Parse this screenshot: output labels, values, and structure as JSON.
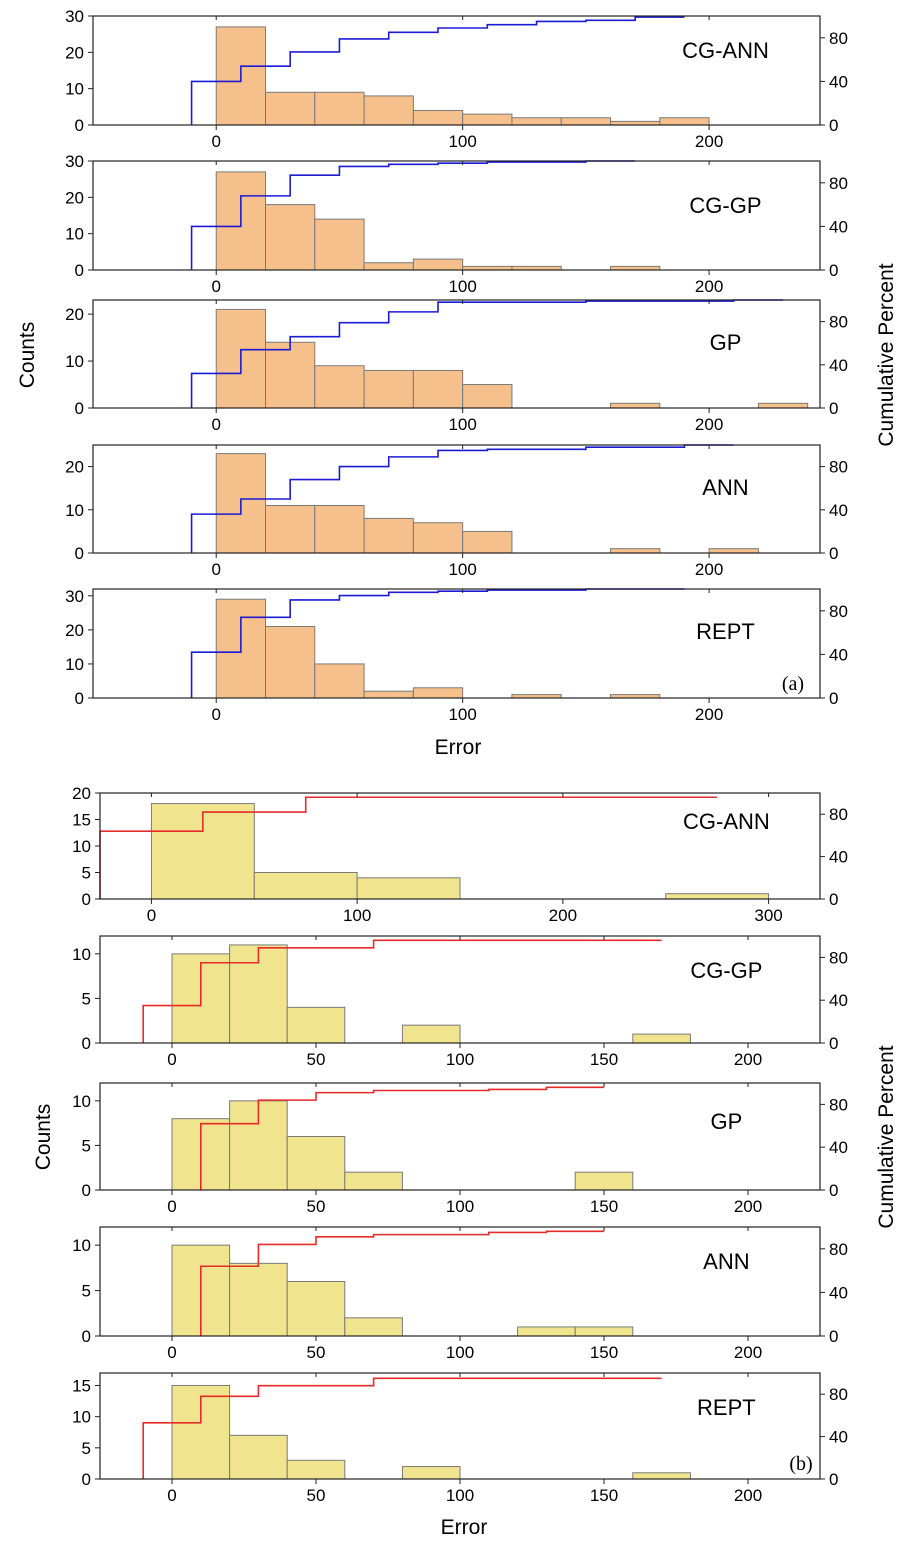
{
  "figure": {
    "panel_tags": [
      "(a)",
      "(b)"
    ],
    "y_label_left": "Counts",
    "y_label_right": "Cumulative Percent",
    "x_label": "Error"
  },
  "colors": {
    "a_bar_fill": "#f5c08b",
    "b_bar_fill": "#f0e48e",
    "a_line": "#1b1bd6",
    "b_line": "#e62b2b",
    "bar_edge": "#7a7a7a",
    "axis": "#222222"
  },
  "chart_data": [
    {
      "type": "bar",
      "panel": "(a)",
      "model": "CG-ANN",
      "bin_edges": [
        0,
        20,
        40,
        60,
        80,
        100,
        120,
        140,
        160,
        180,
        200
      ],
      "counts": [
        27,
        9,
        9,
        8,
        4,
        3,
        2,
        2,
        1,
        2
      ],
      "cumulative": {
        "x": [
          -10,
          10,
          30,
          50,
          70,
          90,
          110,
          130,
          150,
          170
        ],
        "y": [
          40,
          54,
          67,
          79,
          85,
          89,
          92,
          95,
          96,
          99
        ]
      },
      "xlim": [
        -50,
        245
      ],
      "ylim": [
        0,
        30
      ],
      "y2lim": [
        0,
        100
      ],
      "xticks": [
        "0",
        "100",
        "200"
      ],
      "yticks": [
        "0",
        "10",
        "20",
        "30"
      ],
      "y2ticks": [
        "0",
        "40",
        "80"
      ]
    },
    {
      "type": "bar",
      "panel": "(a)",
      "model": "CG-GP",
      "bin_edges": [
        0,
        20,
        40,
        60,
        80,
        100,
        120,
        140,
        160,
        180
      ],
      "counts": [
        27,
        18,
        14,
        2,
        3,
        1,
        1,
        0,
        1
      ],
      "cumulative": {
        "x": [
          -10,
          10,
          30,
          50,
          70,
          90,
          110,
          130,
          150
        ],
        "y": [
          40,
          68,
          87,
          95,
          97,
          98,
          99,
          99,
          100
        ]
      },
      "xlim": [
        -50,
        245
      ],
      "ylim": [
        0,
        30
      ],
      "y2lim": [
        0,
        100
      ],
      "xticks": [
        "0",
        "100",
        "200"
      ],
      "yticks": [
        "0",
        "10",
        "20",
        "30"
      ],
      "y2ticks": [
        "0",
        "40",
        "80"
      ]
    },
    {
      "type": "bar",
      "panel": "(a)",
      "model": "GP",
      "bin_edges": [
        0,
        20,
        40,
        60,
        80,
        100,
        120,
        140,
        160,
        180,
        200,
        220,
        240
      ],
      "counts": [
        21,
        14,
        9,
        8,
        8,
        5,
        0,
        0,
        1,
        0,
        0,
        1
      ],
      "cumulative": {
        "x": [
          -10,
          10,
          30,
          50,
          70,
          90,
          110,
          130,
          150,
          170,
          190,
          210
        ],
        "y": [
          32,
          54,
          66,
          79,
          89,
          98,
          98,
          98,
          99,
          99,
          99,
          100
        ]
      },
      "xlim": [
        -50,
        245
      ],
      "ylim": [
        0,
        23
      ],
      "y2lim": [
        0,
        100
      ],
      "xticks": [
        "0",
        "100",
        "200"
      ],
      "yticks": [
        "0",
        "10",
        "20"
      ],
      "y2ticks": [
        "0",
        "40",
        "80"
      ]
    },
    {
      "type": "bar",
      "panel": "(a)",
      "model": "ANN",
      "bin_edges": [
        0,
        20,
        40,
        60,
        80,
        100,
        120,
        140,
        160,
        180,
        200,
        220
      ],
      "counts": [
        23,
        11,
        11,
        8,
        7,
        5,
        0,
        0,
        1,
        0,
        1
      ],
      "cumulative": {
        "x": [
          -10,
          10,
          30,
          50,
          70,
          90,
          110,
          130,
          150,
          170,
          190
        ],
        "y": [
          36,
          50,
          68,
          80,
          89,
          95,
          96,
          96,
          98,
          98,
          100
        ]
      },
      "xlim": [
        -50,
        245
      ],
      "ylim": [
        0,
        25
      ],
      "y2lim": [
        0,
        100
      ],
      "xticks": [
        "0",
        "100",
        "200"
      ],
      "yticks": [
        "0",
        "10",
        "20"
      ],
      "y2ticks": [
        "0",
        "40",
        "80"
      ]
    },
    {
      "type": "bar",
      "panel": "(a)",
      "model": "REPT",
      "bin_edges": [
        0,
        20,
        40,
        60,
        80,
        100,
        120,
        140,
        160,
        180,
        200,
        220,
        240
      ],
      "counts": [
        29,
        21,
        10,
        2,
        3,
        0,
        1,
        0,
        1,
        0,
        0,
        0
      ],
      "cumulative": {
        "x": [
          -10,
          10,
          30,
          50,
          70,
          90,
          110,
          130,
          150,
          170
        ],
        "y": [
          42,
          74,
          90,
          94,
          97,
          98,
          99,
          99,
          100,
          100
        ]
      },
      "xlim": [
        -50,
        245
      ],
      "ylim": [
        0,
        32
      ],
      "y2lim": [
        0,
        100
      ],
      "xticks": [
        "0",
        "100",
        "200"
      ],
      "yticks": [
        "0",
        "10",
        "20",
        "30"
      ],
      "y2ticks": [
        "0",
        "40",
        "80"
      ]
    },
    {
      "type": "bar",
      "panel": "(b)",
      "model": "CG-ANN",
      "bin_edges": [
        0,
        50,
        100,
        150,
        200,
        250,
        300
      ],
      "counts": [
        18,
        5,
        4,
        0,
        0,
        1
      ],
      "cumulative": {
        "x": [
          -25,
          25,
          75,
          125,
          175,
          225
        ],
        "y": [
          64,
          82,
          96,
          96,
          96,
          96
        ]
      },
      "xlim": [
        -25,
        325
      ],
      "ylim": [
        0,
        20
      ],
      "y2lim": [
        0,
        100
      ],
      "xticks": [
        "0",
        "100",
        "200",
        "300"
      ],
      "yticks": [
        "0",
        "5",
        "10",
        "15",
        "20"
      ],
      "y2ticks": [
        "0",
        "40",
        "80"
      ]
    },
    {
      "type": "bar",
      "panel": "(b)",
      "model": "CG-GP",
      "bin_edges": [
        0,
        20,
        40,
        60,
        80,
        100,
        120,
        140,
        160,
        180
      ],
      "counts": [
        10,
        11,
        4,
        0,
        2,
        0,
        0,
        0,
        1
      ],
      "cumulative": {
        "x": [
          -10,
          10,
          30,
          50,
          70,
          90,
          110,
          130,
          150
        ],
        "y": [
          35,
          75,
          89,
          89,
          96,
          96,
          96,
          96,
          96
        ]
      },
      "xlim": [
        -25,
        225
      ],
      "ylim": [
        0,
        12
      ],
      "y2lim": [
        0,
        100
      ],
      "xticks": [
        "0",
        "50",
        "100",
        "150",
        "200"
      ],
      "yticks": [
        "0",
        "5",
        "10"
      ],
      "y2ticks": [
        "0",
        "40",
        "80"
      ]
    },
    {
      "type": "bar",
      "panel": "(b)",
      "model": "GP",
      "bin_edges": [
        0,
        20,
        40,
        60,
        80,
        100,
        120,
        140,
        160
      ],
      "counts": [
        8,
        10,
        6,
        2,
        0,
        0,
        0,
        2
      ],
      "cumulative": {
        "x": [
          10,
          30,
          50,
          70,
          90,
          110,
          130
        ],
        "y": [
          62,
          84,
          91,
          93,
          93,
          94,
          96
        ]
      },
      "xlim": [
        -25,
        225
      ],
      "ylim": [
        0,
        12
      ],
      "y2lim": [
        0,
        100
      ],
      "xticks": [
        "0",
        "50",
        "100",
        "150",
        "200"
      ],
      "yticks": [
        "0",
        "5",
        "10"
      ],
      "y2ticks": [
        "0",
        "40",
        "80"
      ]
    },
    {
      "type": "bar",
      "panel": "(b)",
      "model": "ANN",
      "bin_edges": [
        0,
        20,
        40,
        60,
        80,
        100,
        120,
        140,
        160
      ],
      "counts": [
        10,
        8,
        6,
        2,
        0,
        0,
        1,
        1
      ],
      "cumulative": {
        "x": [
          10,
          30,
          50,
          70,
          90,
          110,
          130
        ],
        "y": [
          64,
          84,
          91,
          93,
          93,
          95,
          96
        ]
      },
      "xlim": [
        -25,
        225
      ],
      "ylim": [
        0,
        12
      ],
      "y2lim": [
        0,
        100
      ],
      "xticks": [
        "0",
        "50",
        "100",
        "150",
        "200"
      ],
      "yticks": [
        "0",
        "5",
        "10"
      ],
      "y2ticks": [
        "0",
        "40",
        "80"
      ]
    },
    {
      "type": "bar",
      "panel": "(b)",
      "model": "REPT",
      "bin_edges": [
        0,
        20,
        40,
        60,
        80,
        100,
        120,
        140,
        160,
        180
      ],
      "counts": [
        15,
        7,
        3,
        0,
        2,
        0,
        0,
        0,
        1
      ],
      "cumulative": {
        "x": [
          -10,
          10,
          30,
          50,
          70,
          90,
          110,
          130,
          150
        ],
        "y": [
          53,
          78,
          88,
          88,
          95,
          95,
          95,
          95,
          95
        ]
      },
      "xlim": [
        -25,
        225
      ],
      "ylim": [
        0,
        17
      ],
      "y2lim": [
        0,
        100
      ],
      "xticks": [
        "0",
        "50",
        "100",
        "150",
        "200"
      ],
      "yticks": [
        "0",
        "5",
        "10",
        "15"
      ],
      "y2ticks": [
        "0",
        "40",
        "80"
      ]
    }
  ]
}
